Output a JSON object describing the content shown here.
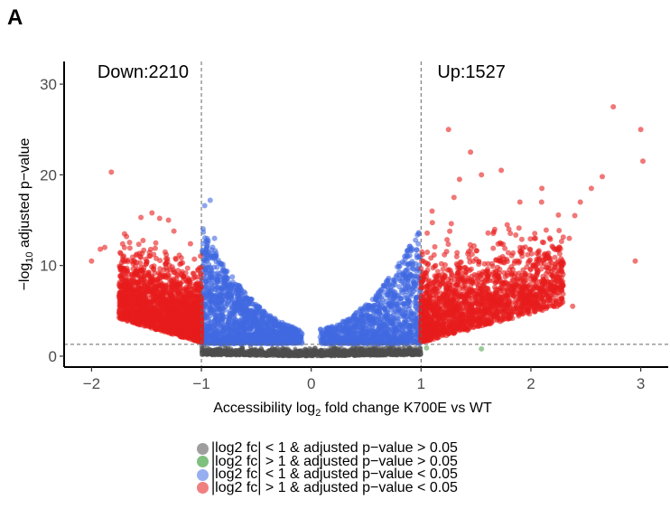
{
  "panel_label": "A",
  "chart_data": {
    "type": "scatter",
    "xlabel": {
      "pre": "Accessibility log",
      "sub": "2",
      "post": " fold change K700E vs WT"
    },
    "ylabel": {
      "pre": "−log",
      "sub": "10",
      "post": " adjusted p−value"
    },
    "xlim": [
      -2.25,
      3.25
    ],
    "ylim": [
      -1.2,
      32.5
    ],
    "xticks": [
      -2,
      -1,
      0,
      1,
      2,
      3
    ],
    "xtick_labels": [
      "−2",
      "−1",
      "0",
      "1",
      "2",
      "3"
    ],
    "yticks": [
      0,
      10,
      20,
      30
    ],
    "ytick_labels": [
      "0",
      "10",
      "20",
      "30"
    ],
    "thresholds": {
      "fold_change": [
        -1,
        1
      ],
      "neg_log10_padj": 1.3
    },
    "grid": false,
    "annotations": [
      {
        "text": "Down:2210",
        "x": -1.0,
        "y": 30.7,
        "anchor": "end"
      },
      {
        "text": "Up:1527",
        "x": 1.0,
        "y": 30.7,
        "anchor": "start"
      }
    ],
    "counts": {
      "down": 2210,
      "up": 1527
    },
    "colors": {
      "ns": "#4d4d4d",
      "fc_only": "#5aa65a",
      "p_only": "#4169e1",
      "both": "#e81c1c"
    },
    "legend_position": "bottom",
    "legend": [
      {
        "label": "|log2 fc| < 1 & adjusted p−value > 0.05",
        "color": "#9e9e9e"
      },
      {
        "label": "|log2 fc| > 1 & adjusted p−value > 0.05",
        "color": "#7fbf7f"
      },
      {
        "label": "|log2 fc| < 1 & adjusted p−value < 0.05",
        "color": "#97aef0"
      },
      {
        "label": "|log2 fc| > 1 & adjusted p−value < 0.05",
        "color": "#f08080"
      }
    ],
    "series": [
      {
        "group": "both",
        "points": [
          [
            -2.0,
            10.5
          ],
          [
            -1.82,
            20.3
          ],
          [
            -1.92,
            11.8
          ],
          [
            -1.7,
            13.5
          ],
          [
            -1.55,
            15.3
          ],
          [
            -1.45,
            15.8
          ],
          [
            -1.38,
            15.2
          ],
          [
            -1.3,
            15.0
          ],
          [
            -1.25,
            13.8
          ],
          [
            -1.6,
            8.0
          ],
          [
            -1.5,
            10.2
          ],
          [
            -1.72,
            9.0
          ],
          [
            -1.88,
            12.0
          ],
          [
            -1.32,
            11.2
          ],
          [
            -1.1,
            12.4
          ],
          [
            2.75,
            27.5
          ],
          [
            3.0,
            25.0
          ],
          [
            3.02,
            21.5
          ],
          [
            2.95,
            10.5
          ],
          [
            2.65,
            19.8
          ],
          [
            2.55,
            18.5
          ],
          [
            2.45,
            17.0
          ],
          [
            2.4,
            15.5
          ],
          [
            2.35,
            13.0
          ],
          [
            2.38,
            5.5
          ],
          [
            1.73,
            20.5
          ],
          [
            1.45,
            22.5
          ],
          [
            1.25,
            25.0
          ],
          [
            1.35,
            19.5
          ],
          [
            1.55,
            20.0
          ],
          [
            1.9,
            17.0
          ],
          [
            2.1,
            18.5
          ],
          [
            1.8,
            14.0
          ],
          [
            1.3,
            17.5
          ],
          [
            1.1,
            16.0
          ],
          [
            2.2,
            12.0
          ],
          [
            2.05,
            9.0
          ],
          [
            1.5,
            6.0
          ]
        ]
      },
      {
        "group": "p_only",
        "points": [
          [
            -0.92,
            17.2
          ],
          [
            -0.97,
            16.6
          ],
          [
            -0.88,
            13.0
          ],
          [
            0.98,
            13.5
          ],
          [
            0.95,
            12.8
          ],
          [
            0.85,
            11.0
          ],
          [
            0.9,
            10.2
          ],
          [
            0.8,
            9.3
          ]
        ]
      },
      {
        "group": "fc_only",
        "points": [
          [
            1.05,
            0.9
          ],
          [
            1.55,
            0.8
          ]
        ]
      }
    ]
  }
}
